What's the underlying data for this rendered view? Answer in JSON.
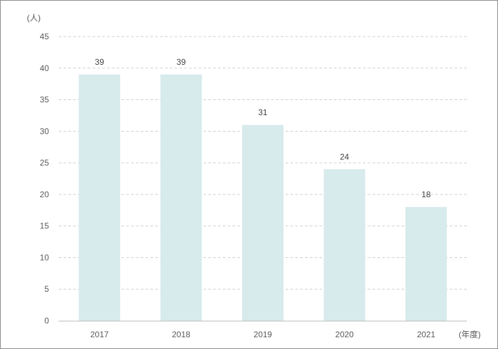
{
  "chart_data": {
    "type": "bar",
    "categories": [
      "2017",
      "2018",
      "2019",
      "2020",
      "2021"
    ],
    "values": [
      39,
      39,
      31,
      24,
      18
    ],
    "data_labels": [
      "39",
      "39",
      "31",
      "24",
      "18"
    ],
    "title": "",
    "xlabel": "(年度)",
    "ylabel": "(人)",
    "ylim": [
      0,
      45
    ],
    "yticks": [
      0,
      5,
      10,
      15,
      20,
      25,
      30,
      35,
      40,
      45
    ],
    "ytick_labels": [
      "0",
      "5",
      "10",
      "15",
      "20",
      "25",
      "30",
      "35",
      "40",
      "45"
    ],
    "grid": true,
    "legend": "none",
    "bar_color": "#d7eaec",
    "grid_color": "#d0d0d0",
    "axis_color": "#bfbfbf"
  }
}
